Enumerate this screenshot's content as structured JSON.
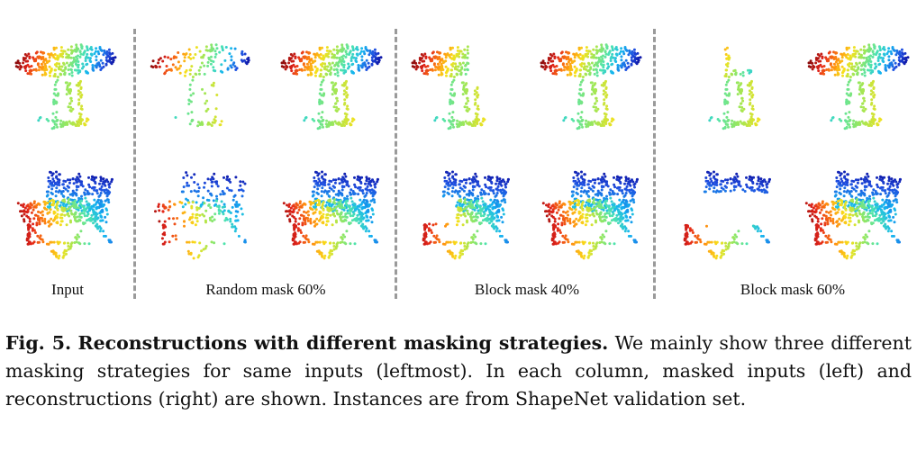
{
  "figure": {
    "columns": [
      {
        "label": "Input"
      },
      {
        "label": "Random mask 60%"
      },
      {
        "label": "Block mask 40%"
      },
      {
        "label": "Block mask 60%"
      }
    ],
    "colormap": [
      "#08008f",
      "#1f4ee0",
      "#14b4f0",
      "#4de3b0",
      "#9be75a",
      "#f7e11b",
      "#ff8c10",
      "#e3241a",
      "#8c0c0c"
    ]
  },
  "caption": {
    "label": "Fig. 5.",
    "title": "Reconstructions with different masking strategies.",
    "text": "We mainly show three different masking strategies for same inputs (leftmost). In each column, masked inputs (left) and reconstructions (right) are shown. Instances are from ShapeNet validation set."
  }
}
